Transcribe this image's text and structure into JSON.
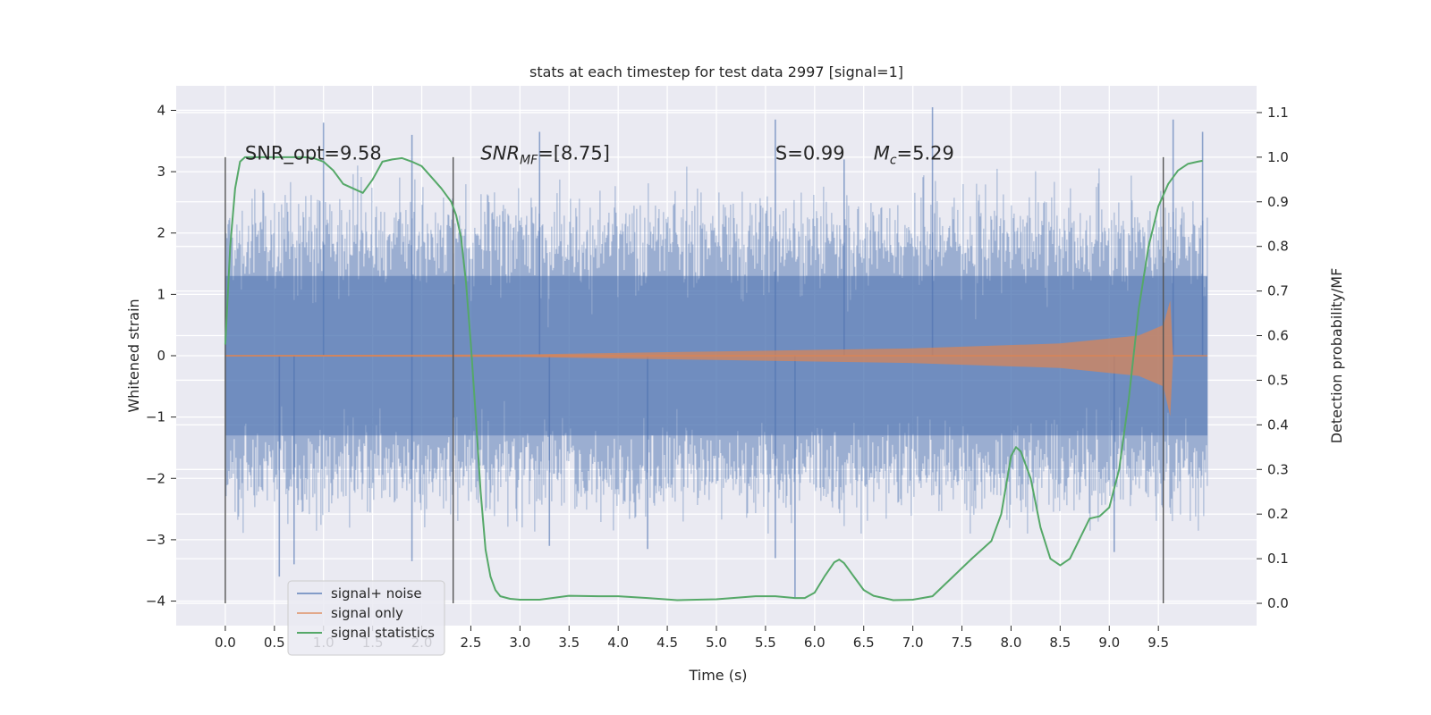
{
  "figure": {
    "title": "stats at each timestep for test data 2997 [signal=1]",
    "background_color": "#eaeaf2"
  },
  "chart_data": {
    "type": "line",
    "title": "stats at each timestep for test data 2997 [signal=1]",
    "xlabel": "Time (s)",
    "ylabel_left": "Whitened strain",
    "ylabel_right": "Detection probability/MF",
    "xlim": [
      -0.5,
      10.5
    ],
    "ylim_left": [
      -4.4,
      4.4
    ],
    "ylim_right": [
      -0.05,
      1.16
    ],
    "xticks": [
      "0.0",
      "0.5",
      "1.0",
      "1.5",
      "2.0",
      "2.5",
      "3.0",
      "3.5",
      "4.0",
      "4.5",
      "5.0",
      "5.5",
      "6.0",
      "6.5",
      "7.0",
      "7.5",
      "8.0",
      "8.5",
      "9.0",
      "9.5"
    ],
    "xtick_values": [
      0,
      0.5,
      1,
      1.5,
      2,
      2.5,
      3,
      3.5,
      4,
      4.5,
      5,
      5.5,
      6,
      6.5,
      7,
      7.5,
      8,
      8.5,
      9,
      9.5
    ],
    "yticks_left": [
      "4",
      "3",
      "2",
      "1",
      "0",
      "−1",
      "−2",
      "−3",
      "−4"
    ],
    "ytick_values_left": [
      4,
      3,
      2,
      1,
      0,
      -1,
      -2,
      -3,
      -4
    ],
    "yticks_right": [
      "1.1",
      "1.0",
      "0.9",
      "0.8",
      "0.7",
      "0.6",
      "0.5",
      "0.4",
      "0.3",
      "0.2",
      "0.1",
      "0.0"
    ],
    "ytick_values_right": [
      1.1,
      1.0,
      0.9,
      0.8,
      0.7,
      0.6,
      0.5,
      0.4,
      0.3,
      0.2,
      0.1,
      0.0
    ],
    "grid": true,
    "legend_position": "bottom-left",
    "annotations": [
      {
        "text": "SNR_opt=9.58",
        "x": 0.2,
        "y": 3.2
      },
      {
        "text": "SNR_MF=[8.75]",
        "x": 2.6,
        "y": 3.2
      },
      {
        "text": "S=0.99",
        "x": 5.6,
        "y": 3.2
      },
      {
        "text": "M_c=5.29",
        "x": 6.6,
        "y": 3.2
      }
    ],
    "vertical_markers": [
      0.0,
      2.32,
      9.55
    ],
    "series": [
      {
        "name": "signal+ noise",
        "axis": "left",
        "color": "#4c72b0",
        "t_range": [
          0.0,
          10.0
        ],
        "core_amplitude": 1.3,
        "typical_peak_positive": 3.0,
        "typical_peak_negative": -2.6,
        "notable_peaks": [
          [
            1.0,
            3.8
          ],
          [
            1.9,
            3.6
          ],
          [
            3.2,
            3.65
          ],
          [
            5.6,
            3.85
          ],
          [
            6.3,
            3.2
          ],
          [
            7.2,
            4.05
          ],
          [
            9.65,
            3.85
          ],
          [
            9.95,
            3.65
          ],
          [
            0.55,
            -3.6
          ],
          [
            0.7,
            -3.4
          ],
          [
            1.9,
            -3.35
          ],
          [
            3.3,
            -3.1
          ],
          [
            4.3,
            -3.15
          ],
          [
            5.6,
            -3.3
          ],
          [
            5.8,
            -3.95
          ],
          [
            9.05,
            -3.2
          ]
        ]
      },
      {
        "name": "signal only",
        "axis": "left",
        "color": "#dd8452",
        "t_range": [
          0.0,
          10.0
        ],
        "envelope": [
          [
            0.0,
            0.01
          ],
          [
            3.0,
            0.02
          ],
          [
            5.0,
            0.07
          ],
          [
            7.0,
            0.12
          ],
          [
            8.5,
            0.2
          ],
          [
            9.3,
            0.33
          ],
          [
            9.55,
            0.5
          ],
          [
            9.62,
            0.9
          ],
          [
            9.65,
            0.0
          ]
        ]
      },
      {
        "name": "signal statistics",
        "axis": "right",
        "color": "#55a868",
        "x": [
          0.0,
          0.05,
          0.1,
          0.15,
          0.2,
          0.3,
          0.4,
          0.5,
          0.6,
          0.7,
          0.8,
          0.9,
          1.0,
          1.1,
          1.2,
          1.3,
          1.4,
          1.5,
          1.6,
          1.7,
          1.8,
          1.9,
          2.0,
          2.1,
          2.2,
          2.3,
          2.35,
          2.4,
          2.45,
          2.5,
          2.55,
          2.6,
          2.65,
          2.7,
          2.75,
          2.8,
          2.9,
          3.0,
          3.2,
          3.5,
          3.8,
          4.0,
          4.3,
          4.6,
          5.0,
          5.4,
          5.6,
          5.8,
          5.9,
          6.0,
          6.1,
          6.2,
          6.25,
          6.3,
          6.4,
          6.5,
          6.6,
          6.8,
          7.0,
          7.2,
          7.4,
          7.6,
          7.8,
          7.9,
          8.0,
          8.05,
          8.1,
          8.2,
          8.3,
          8.4,
          8.5,
          8.6,
          8.7,
          8.8,
          8.9,
          9.0,
          9.1,
          9.2,
          9.3,
          9.4,
          9.5,
          9.6,
          9.7,
          9.8,
          9.9,
          9.95
        ],
        "values": [
          0.58,
          0.8,
          0.93,
          0.99,
          1.0,
          1.0,
          1.0,
          1.0,
          1.0,
          1.0,
          1.0,
          0.998,
          0.99,
          0.97,
          0.94,
          0.93,
          0.92,
          0.95,
          0.99,
          0.995,
          0.998,
          0.99,
          0.98,
          0.955,
          0.93,
          0.9,
          0.87,
          0.82,
          0.72,
          0.58,
          0.42,
          0.25,
          0.12,
          0.06,
          0.03,
          0.016,
          0.01,
          0.008,
          0.008,
          0.017,
          0.016,
          0.016,
          0.012,
          0.007,
          0.009,
          0.016,
          0.016,
          0.012,
          0.012,
          0.024,
          0.06,
          0.092,
          0.098,
          0.09,
          0.06,
          0.03,
          0.017,
          0.007,
          0.008,
          0.016,
          0.058,
          0.1,
          0.14,
          0.2,
          0.33,
          0.35,
          0.34,
          0.28,
          0.17,
          0.1,
          0.085,
          0.1,
          0.145,
          0.19,
          0.195,
          0.215,
          0.3,
          0.46,
          0.66,
          0.8,
          0.89,
          0.94,
          0.97,
          0.985,
          0.99,
          0.992
        ]
      }
    ]
  }
}
